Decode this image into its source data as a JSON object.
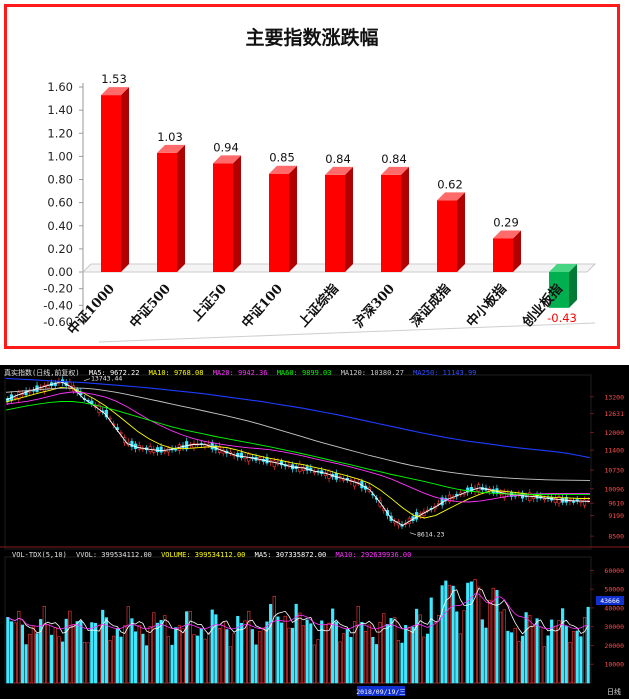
{
  "bar_panel": {
    "title": "主要指数涨跌幅"
  },
  "kline_panel": {
    "legend": {
      "name": "真实指数(日线,前复权)",
      "ma5": "MA5: 9672.22",
      "ma10": "MA10: 9768.08",
      "ma20": "MA20: 9942.36",
      "ma60": "MA60: 9899.03",
      "ma120": "MA120: 10380.27",
      "ma250": "MA250: 11143.99"
    },
    "high_label": "13743.44",
    "low_label": "8614.23",
    "price_ticks": [
      "13200",
      "12631",
      "12000",
      "11400",
      "10730",
      "10096",
      "9610",
      "9190",
      "8500"
    ],
    "volume_legend": {
      "name": "VOL-TDX(5,10)",
      "vvol": "VVOL: 399534112.00",
      "volume": "VOLUME: 399534112.00",
      "ma5": "MA5: 307335872.00",
      "ma10": "MA10: 292639936.00"
    },
    "volume_ticks": [
      "60000",
      "50000",
      "40000",
      "30000",
      "20000",
      "10000"
    ],
    "volume_highlight": "43666",
    "date_label": "2018/09/19/三",
    "period_label": "日线",
    "colors": {
      "up": "#ff3b3b",
      "down": "#3fe8ff",
      "ma5": "#ffffff",
      "ma10": "#ffff00",
      "ma20": "#ff33ff",
      "ma60": "#00ff00",
      "ma120": "#c8c8c8",
      "ma250": "#1e3cff"
    }
  },
  "chart_data": [
    {
      "type": "bar",
      "title": "主要指数涨跌幅",
      "categories": [
        "中证1000",
        "中证500",
        "上证50",
        "中证100",
        "上证综指",
        "沪深300",
        "深证成指",
        "中小板指",
        "创业板指"
      ],
      "values": [
        1.53,
        1.03,
        0.94,
        0.85,
        0.84,
        0.84,
        0.62,
        0.29,
        -0.43
      ],
      "value_labels": [
        "1.53",
        "1.03",
        "0.94",
        "0.85",
        "0.84",
        "0.84",
        "0.62",
        "0.29",
        "-0.43"
      ],
      "ylim": [
        -0.6,
        1.6
      ],
      "yticks": [
        "1.60",
        "1.40",
        "1.20",
        "1.00",
        "0.80",
        "0.60",
        "0.40",
        "0.20",
        "0.00",
        "-0.20",
        "-0.40",
        "-0.60"
      ],
      "colors": {
        "positive": "#ff0000",
        "negative": "#00b050"
      },
      "grid": false,
      "legend": "none"
    },
    {
      "type": "line",
      "title": "真实指数(日线,前复权)",
      "ylim": [
        8200,
        13800
      ],
      "series": [
        {
          "name": "MA5",
          "values": [
            13090,
            13250,
            13380,
            13500,
            13600,
            13710,
            13520,
            13160,
            12900,
            12620,
            12120,
            11620,
            11490,
            11430,
            11380,
            11420,
            11520,
            11590,
            11600,
            11480,
            11330,
            11210,
            11160,
            11090,
            11010,
            10940,
            10830,
            10800,
            10690,
            10620,
            10500,
            10400,
            10280,
            10070,
            9610,
            9070,
            8860,
            9090,
            9290,
            9490,
            9730,
            9870,
            10020,
            10130,
            10060,
            9960,
            9890,
            9860,
            9830,
            9780,
            9740,
            9700,
            9680,
            9672
          ]
        },
        {
          "name": "MA10",
          "values": [
            13020,
            13130,
            13230,
            13330,
            13420,
            13520,
            13480,
            13330,
            13130,
            12900,
            12620,
            12320,
            12020,
            11780,
            11590,
            11470,
            11450,
            11470,
            11500,
            11520,
            11490,
            11400,
            11290,
            11200,
            11120,
            11050,
            10970,
            10910,
            10820,
            10740,
            10630,
            10530,
            10420,
            10280,
            10050,
            9760,
            9450,
            9200,
            9110,
            9200,
            9390,
            9580,
            9760,
            9910,
            10030,
            10020,
            9980,
            9940,
            9880,
            9830,
            9800,
            9790,
            9770,
            9768
          ]
        },
        {
          "name": "MA20",
          "values": [
            12950,
            13000,
            13050,
            13130,
            13220,
            13310,
            13360,
            13340,
            13280,
            13190,
            13050,
            12860,
            12640,
            12420,
            12230,
            12060,
            11910,
            11790,
            11700,
            11630,
            11570,
            11520,
            11480,
            11450,
            11410,
            11350,
            11280,
            11200,
            11110,
            11030,
            10950,
            10860,
            10760,
            10660,
            10550,
            10420,
            10260,
            10100,
            9940,
            9810,
            9720,
            9660,
            9650,
            9680,
            9740,
            9810,
            9870,
            9900,
            9920,
            9930,
            9940,
            9940,
            9942,
            9942
          ]
        },
        {
          "name": "MA60",
          "values": [
            12750,
            12830,
            12900,
            12960,
            13010,
            13040,
            13040,
            13000,
            12930,
            12840,
            12740,
            12630,
            12520,
            12410,
            12300,
            12190,
            12100,
            12020,
            11940,
            11860,
            11790,
            11720,
            11650,
            11580,
            11510,
            11430,
            11350,
            11270,
            11190,
            11100,
            11010,
            10930,
            10840,
            10750,
            10670,
            10580,
            10500,
            10420,
            10340,
            10250,
            10160,
            10080,
            10020,
            9980,
            9950,
            9930,
            9920,
            9910,
            9905,
            9900,
            9900,
            9900,
            9899,
            9899
          ]
        },
        {
          "name": "MA120",
          "values": [
            13350,
            13380,
            13410,
            13440,
            13470,
            13490,
            13500,
            13490,
            13460,
            13410,
            13350,
            13280,
            13200,
            13120,
            13040,
            12960,
            12880,
            12800,
            12720,
            12640,
            12560,
            12470,
            12380,
            12280,
            12170,
            12060,
            11950,
            11840,
            11730,
            11620,
            11520,
            11420,
            11320,
            11220,
            11130,
            11040,
            10950,
            10870,
            10800,
            10730,
            10670,
            10620,
            10570,
            10530,
            10500,
            10470,
            10450,
            10430,
            10415,
            10400,
            10390,
            10385,
            10382,
            10380
          ]
        },
        {
          "name": "MA250",
          "values": [
            13820,
            13800,
            13780,
            13760,
            13740,
            13720,
            13700,
            13680,
            13650,
            13620,
            13590,
            13560,
            13530,
            13500,
            13460,
            13420,
            13380,
            13340,
            13300,
            13250,
            13200,
            13150,
            13100,
            13050,
            12990,
            12930,
            12870,
            12810,
            12740,
            12670,
            12600,
            12520,
            12440,
            12360,
            12280,
            12200,
            12120,
            12040,
            11960,
            11890,
            11820,
            11760,
            11700,
            11650,
            11600,
            11550,
            11500,
            11460,
            11420,
            11380,
            11340,
            11290,
            11220,
            11144
          ]
        }
      ]
    }
  ]
}
